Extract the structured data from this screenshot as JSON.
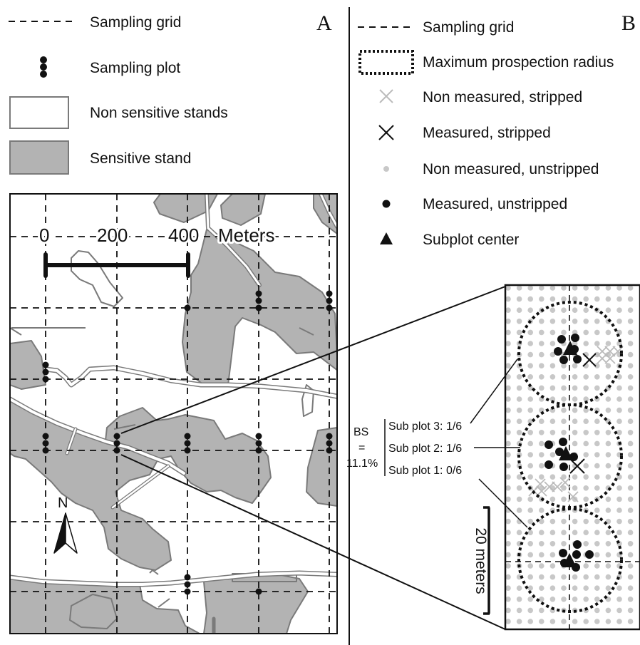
{
  "panel_a": {
    "letter": "A",
    "legend": [
      {
        "kind": "dashed-line",
        "label": "Sampling grid"
      },
      {
        "kind": "plot-dots",
        "label": "Sampling plot"
      },
      {
        "kind": "white-box",
        "label": "Non sensitive stands"
      },
      {
        "kind": "gray-box",
        "label": "Sensitive stand"
      }
    ],
    "scale": {
      "ticks": [
        "0",
        "200",
        "400"
      ],
      "unit": "Meters"
    },
    "north_label": "N"
  },
  "panel_b": {
    "letter": "B",
    "legend": [
      {
        "kind": "dashed-line",
        "label": "Sampling grid"
      },
      {
        "kind": "dotted-rect",
        "label": "Maximum prospection radius"
      },
      {
        "kind": "gray-x",
        "label": "Non measured, stripped"
      },
      {
        "kind": "black-x",
        "label": "Measured, stripped"
      },
      {
        "kind": "gray-dot",
        "label": "Non measured, unstripped"
      },
      {
        "kind": "black-dot",
        "label": "Measured, unstripped"
      },
      {
        "kind": "triangle",
        "label": "Subplot center"
      }
    ],
    "bs": {
      "label": "BS",
      "eq": "=",
      "value": "11.1%"
    },
    "subplots": [
      "Sub plot 3: 1/6",
      "Sub plot 2: 1/6",
      "Sub plot 1: 0/6"
    ],
    "scale_label": "20 meters"
  },
  "colors": {
    "stand_fill": "#b3b3b3",
    "stand_edge": "#7a7a7a",
    "tree_gray": "#c8c8c8",
    "ink": "#111111"
  }
}
